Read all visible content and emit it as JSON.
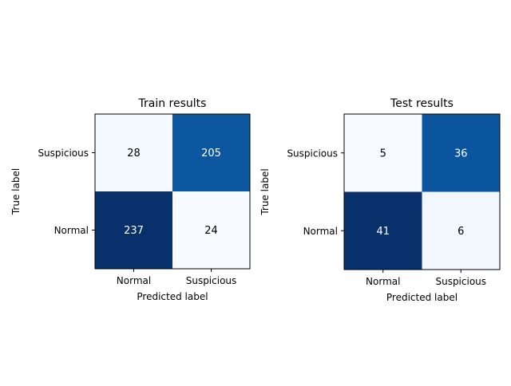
{
  "chart_data": [
    {
      "type": "heatmap",
      "title": "Train results",
      "xlabel": "Predicted label",
      "ylabel": "True label",
      "x_categories": [
        "Normal",
        "Suspicious"
      ],
      "y_categories": [
        "Suspicious",
        "Normal"
      ],
      "values": [
        [
          28,
          205
        ],
        [
          237,
          24
        ]
      ],
      "colormap": "Blues",
      "vmin": 24,
      "vmax": 237,
      "grid": false
    },
    {
      "type": "heatmap",
      "title": "Test results",
      "xlabel": "Predicted label",
      "ylabel": "True label",
      "x_categories": [
        "Normal",
        "Suspicious"
      ],
      "y_categories": [
        "Suspicious",
        "Normal"
      ],
      "values": [
        [
          5,
          36
        ],
        [
          41,
          6
        ]
      ],
      "colormap": "Blues",
      "vmin": 5,
      "vmax": 41,
      "grid": false
    }
  ],
  "colors": {
    "blues_low": "#f7fbff",
    "blues_high": "#08306b",
    "text_dark": "#000000",
    "text_light": "#ffffff"
  }
}
